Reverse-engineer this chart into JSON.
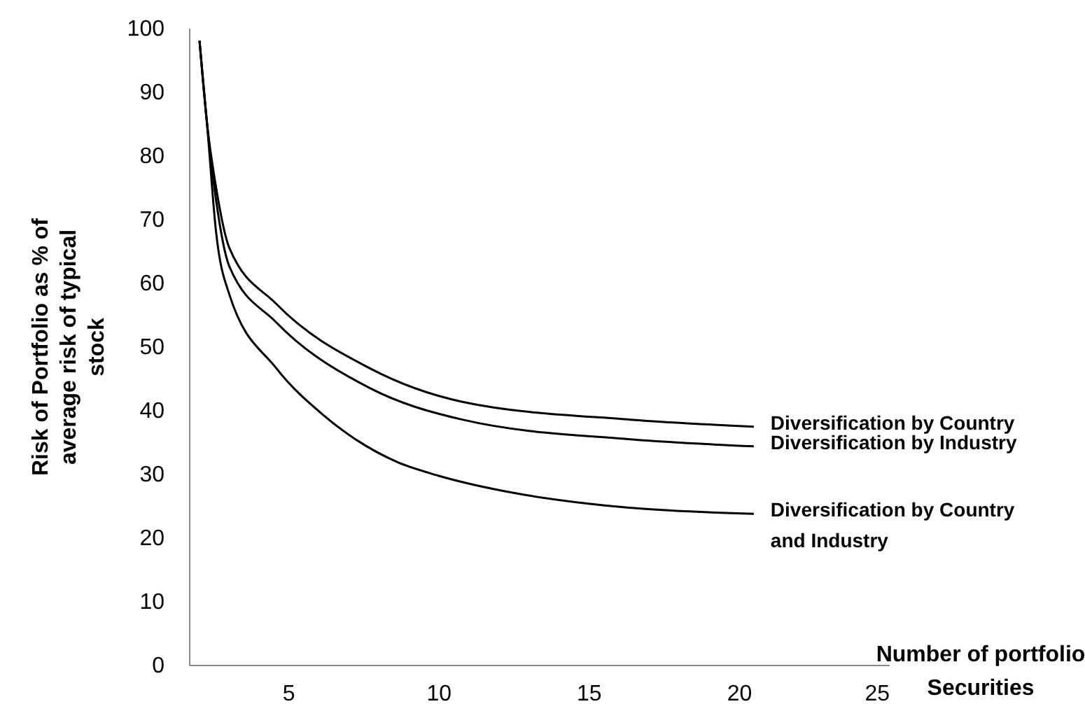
{
  "chart_data": {
    "type": "line",
    "xlabel": "Number of portfolio Securities",
    "ylabel": "Risk of Portfolio as % of average risk of typical stock",
    "xlim": [
      1.7,
      25
    ],
    "xticks": [
      5,
      10,
      15,
      20,
      25
    ],
    "ylim": [
      0,
      100
    ],
    "yticks": [
      0,
      10,
      20,
      30,
      40,
      50,
      60,
      70,
      80,
      90,
      100
    ],
    "grid": false,
    "legend": false,
    "marker": "none",
    "line_style": "solid",
    "series": [
      {
        "name": "Diversification by Country",
        "color": "#000000",
        "x": [
          2.05,
          2.3,
          2.6,
          3.04,
          4.6,
          7.7,
          10.8,
          16.4,
          20.5
        ],
        "values": [
          98,
          85,
          75,
          65.5,
          56.7,
          46.6,
          41.3,
          38.5,
          37.4
        ]
      },
      {
        "name": "Diversification by Industry",
        "color": "#000000",
        "x": [
          2.05,
          2.3,
          2.6,
          3.04,
          4.6,
          7.7,
          10.8,
          16.4,
          20.5
        ],
        "values": [
          98,
          85,
          73,
          62.6,
          53.8,
          43.5,
          38.5,
          35.4,
          34.3
        ]
      },
      {
        "name": "Diversification by Country and Industry",
        "color": "#000000",
        "x": [
          2.05,
          2.3,
          2.6,
          3.04,
          4.6,
          6.2,
          8.6,
          10,
          12.5,
          15,
          20.5
        ],
        "values": [
          98,
          85,
          68,
          58.2,
          46.6,
          39.1,
          31.9,
          29.7,
          27,
          25.3,
          23.7
        ]
      }
    ]
  }
}
